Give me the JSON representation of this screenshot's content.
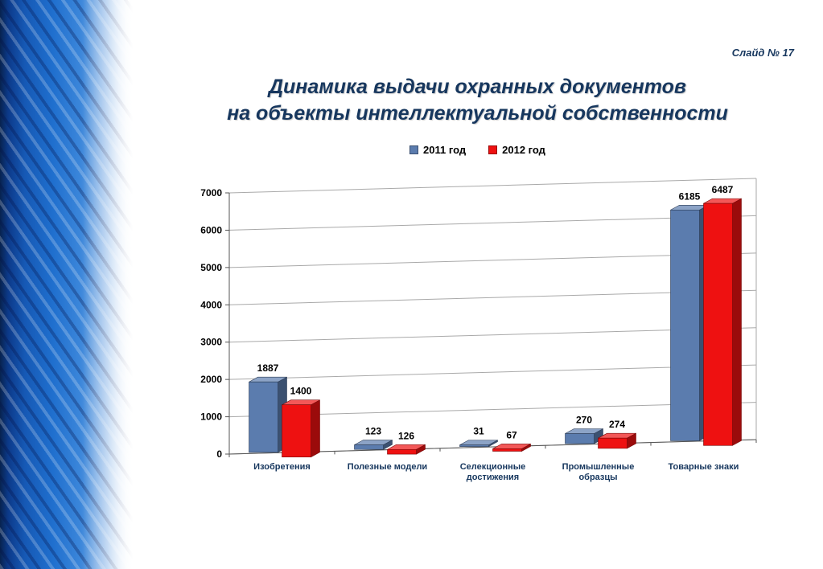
{
  "slide": {
    "slide_number_label": "Слайд № 17",
    "title_line1": "Динамика выдачи охранных документов",
    "title_line2": "на объекты интеллектуальной собственности"
  },
  "colors": {
    "accent_navy": "#17375E",
    "series_2011": "#5B7CAE",
    "series_2012": "#EE1111"
  },
  "chart_data": {
    "type": "bar",
    "effect": "3d",
    "title": "Динамика выдачи охранных документов на объекты интеллектуальной собственности",
    "categories": [
      "Изобретения",
      "Полезные модели",
      "Селекционные достижения",
      "Промышленные образцы",
      "Товарные знаки"
    ],
    "series": [
      {
        "name": "2011 год",
        "color": "#5B7CAE",
        "values": [
          1887,
          123,
          31,
          270,
          6185
        ]
      },
      {
        "name": "2012 год",
        "color": "#EE1111",
        "values": [
          1400,
          126,
          67,
          274,
          6487
        ]
      }
    ],
    "xlabel": "",
    "ylabel": "",
    "ylim": [
      0,
      7000
    ],
    "ytick_step": 1000,
    "grid": true,
    "legend_position": "top"
  }
}
